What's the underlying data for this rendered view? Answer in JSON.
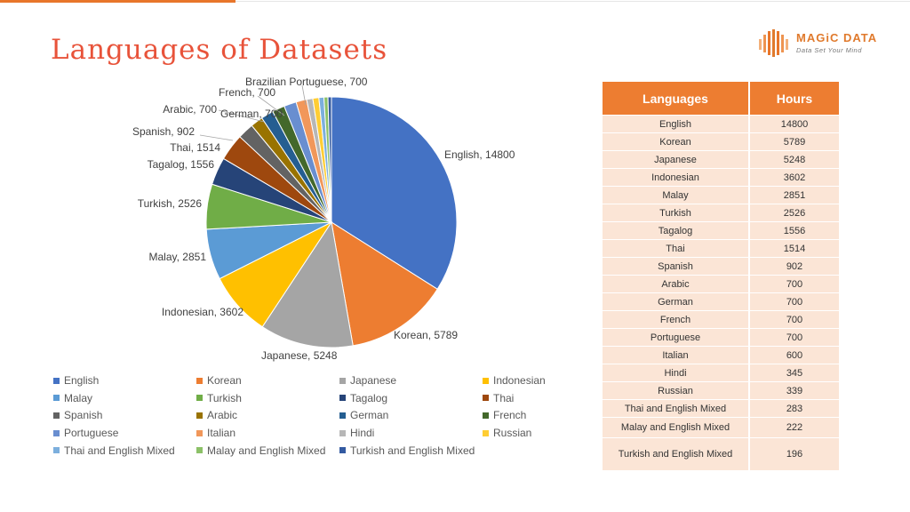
{
  "slide": {
    "title": "Languages of Datasets",
    "accent_color": "#e8762b",
    "title_color": "#e8533a"
  },
  "logo": {
    "name": "MAGiC DATA",
    "tagline": "Data Set Your Mind"
  },
  "table": {
    "headers": [
      "Languages",
      "Hours"
    ],
    "rows": [
      [
        "English",
        "14800"
      ],
      [
        "Korean",
        "5789"
      ],
      [
        "Japanese",
        "5248"
      ],
      [
        "Indonesian",
        "3602"
      ],
      [
        "Malay",
        "2851"
      ],
      [
        "Turkish",
        "2526"
      ],
      [
        "Tagalog",
        "1556"
      ],
      [
        "Thai",
        "1514"
      ],
      [
        "Spanish",
        "902"
      ],
      [
        "Arabic",
        "700"
      ],
      [
        "German",
        "700"
      ],
      [
        "French",
        "700"
      ],
      [
        "Portuguese",
        "700"
      ],
      [
        "Italian",
        "600"
      ],
      [
        "Hindi",
        "345"
      ],
      [
        "Russian",
        "339"
      ],
      [
        "Thai and English Mixed",
        "283"
      ],
      [
        "Malay and English Mixed",
        "222"
      ],
      [
        "Turkish and English Mixed",
        "196"
      ]
    ]
  },
  "chart_data": {
    "type": "pie",
    "title": "",
    "slices": [
      {
        "name": "English",
        "value": 14800,
        "color": "#4472c4",
        "label": "English, 14800"
      },
      {
        "name": "Korean",
        "value": 5789,
        "color": "#ed7d31",
        "label": "Korean, 5789"
      },
      {
        "name": "Japanese",
        "value": 5248,
        "color": "#a5a5a5",
        "label": "Japanese, 5248"
      },
      {
        "name": "Indonesian",
        "value": 3602,
        "color": "#ffc000",
        "label": "Indonesian, 3602"
      },
      {
        "name": "Malay",
        "value": 2851,
        "color": "#5b9bd5",
        "label": "Malay, 2851"
      },
      {
        "name": "Turkish",
        "value": 2526,
        "color": "#70ad47",
        "label": "Turkish, 2526"
      },
      {
        "name": "Tagalog",
        "value": 1556,
        "color": "#264478",
        "label": "Tagalog, 1556"
      },
      {
        "name": "Thai",
        "value": 1514,
        "color": "#9e480e",
        "label": "Thai, 1514"
      },
      {
        "name": "Spanish",
        "value": 902,
        "color": "#636363",
        "label": "Spanish, 902"
      },
      {
        "name": "Arabic",
        "value": 700,
        "color": "#997300",
        "label": "Arabic, 700"
      },
      {
        "name": "German",
        "value": 700,
        "color": "#255e91",
        "label": "German, 700"
      },
      {
        "name": "French",
        "value": 700,
        "color": "#43682b",
        "label": "French, 700"
      },
      {
        "name": "Portuguese",
        "value": 700,
        "color": "#698ed0",
        "label": "Brazilian Portuguese, 700"
      },
      {
        "name": "Italian",
        "value": 600,
        "color": "#f1975a",
        "label": ""
      },
      {
        "name": "Hindi",
        "value": 345,
        "color": "#b7b7b7",
        "label": ""
      },
      {
        "name": "Russian",
        "value": 339,
        "color": "#ffcd33",
        "label": ""
      },
      {
        "name": "Thai and English Mixed",
        "value": 283,
        "color": "#7cafdd",
        "label": ""
      },
      {
        "name": "Malay and English Mixed",
        "value": 222,
        "color": "#8cc168",
        "label": ""
      },
      {
        "name": "Turkish and English Mixed",
        "value": 196,
        "color": "#335aa1",
        "label": ""
      }
    ],
    "legend_position": "bottom"
  }
}
